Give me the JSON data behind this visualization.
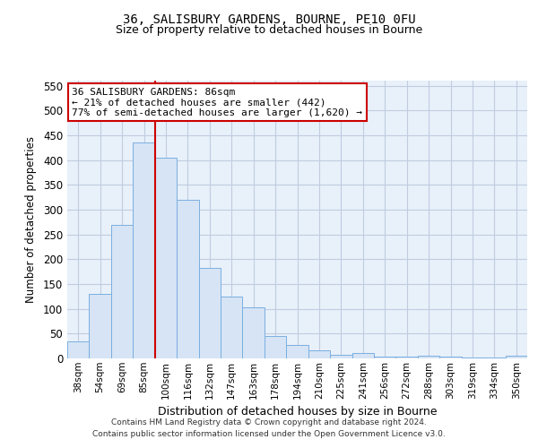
{
  "title1": "36, SALISBURY GARDENS, BOURNE, PE10 0FU",
  "title2": "Size of property relative to detached houses in Bourne",
  "xlabel": "Distribution of detached houses by size in Bourne",
  "ylabel": "Number of detached properties",
  "categories": [
    "38sqm",
    "54sqm",
    "69sqm",
    "85sqm",
    "100sqm",
    "116sqm",
    "132sqm",
    "147sqm",
    "163sqm",
    "178sqm",
    "194sqm",
    "210sqm",
    "225sqm",
    "241sqm",
    "256sqm",
    "272sqm",
    "288sqm",
    "303sqm",
    "319sqm",
    "334sqm",
    "350sqm"
  ],
  "bar_values": [
    35,
    130,
    270,
    435,
    405,
    320,
    183,
    125,
    103,
    45,
    28,
    17,
    7,
    10,
    3,
    3,
    5,
    3,
    2,
    2,
    5
  ],
  "bar_color": "#d6e4f5",
  "bar_edge_color": "#7aafe0",
  "red_line_color": "#cc0000",
  "red_line_x": 3.5,
  "annotation_text": "36 SALISBURY GARDENS: 86sqm\n← 21% of detached houses are smaller (442)\n77% of semi-detached houses are larger (1,620) →",
  "annotation_box_color": "#ffffff",
  "annotation_box_edge": "#cc0000",
  "ylim": [
    0,
    560
  ],
  "yticks": [
    0,
    50,
    100,
    150,
    200,
    250,
    300,
    350,
    400,
    450,
    500,
    550
  ],
  "footer1": "Contains HM Land Registry data © Crown copyright and database right 2024.",
  "footer2": "Contains public sector information licensed under the Open Government Licence v3.0.",
  "bg_color": "#ffffff",
  "plot_bg_color": "#e8f0fa",
  "grid_color": "#c0cce0"
}
